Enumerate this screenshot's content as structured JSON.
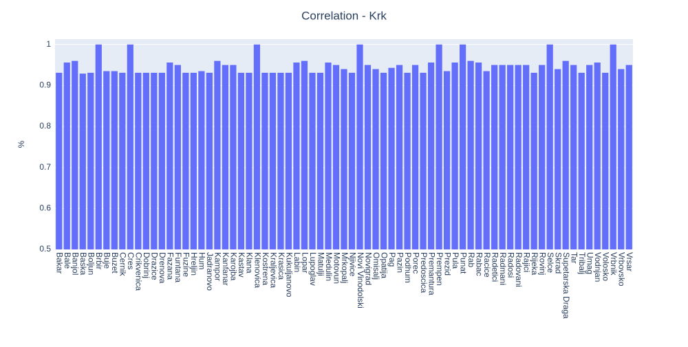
{
  "chart_data": {
    "type": "bar",
    "title": "Correlation - Krk",
    "y_label": "%",
    "color": "#636efa",
    "grid": true,
    "categories": [
      "Bakar",
      "Bale",
      "Banjol",
      "Baska",
      "Boljun",
      "Brbir",
      "Buje",
      "Buzet",
      "Cernik",
      "Cres",
      "Crikvenica",
      "Dobrinj",
      "Drazice",
      "Drenova",
      "Fazana",
      "Funtana",
      "Fuzine",
      "Hreljin",
      "Hum",
      "Jadranovo",
      "Kampor",
      "Kanfanar",
      "Karojba",
      "Kastav",
      "Klana",
      "Klenovica",
      "Kostrena",
      "Kraljevica",
      "Krasica",
      "Kukuljanovo",
      "Labin",
      "Lopar",
      "Lupoglav",
      "Matulji",
      "Medulin",
      "Motovun",
      "Mrkopalj",
      "Njivice",
      "Novi Vinodolski",
      "Novigrad",
      "Omisalj",
      "Opatija",
      "Pag",
      "Pazin",
      "Podhum",
      "Porec",
      "Predoscica",
      "Premantura",
      "Prempen",
      "Prezid",
      "Pula",
      "Punat",
      "Rab",
      "Rabac",
      "Racice",
      "Radetici",
      "Radmani",
      "Radosi",
      "Radovani",
      "Rajici",
      "Rijeka",
      "Rovinj",
      "Selce",
      "Skrad",
      "Supetarska Draga",
      "Tar",
      "Tribalj",
      "Umag",
      "Vodnjan",
      "Volosko",
      "Vrbnik",
      "Vrbovsko",
      "Vrsar"
    ],
    "values": [
      0.931,
      0.956,
      0.96,
      0.929,
      0.931,
      1.0,
      0.935,
      0.935,
      0.931,
      1.0,
      0.931,
      0.931,
      0.931,
      0.931,
      0.956,
      0.95,
      0.931,
      0.931,
      0.935,
      0.931,
      0.96,
      0.95,
      0.95,
      0.931,
      0.931,
      1.0,
      0.931,
      0.931,
      0.931,
      0.931,
      0.956,
      0.96,
      0.931,
      0.931,
      0.956,
      0.95,
      0.94,
      0.931,
      1.0,
      0.95,
      0.94,
      0.931,
      0.943,
      0.95,
      0.931,
      0.95,
      0.931,
      0.956,
      1.0,
      0.935,
      0.956,
      1.0,
      0.96,
      0.956,
      0.935,
      0.95,
      0.95,
      0.95,
      0.95,
      0.95,
      0.931,
      0.95,
      1.0,
      0.94,
      0.96,
      0.95,
      0.931,
      0.95,
      0.956,
      0.931,
      1.0,
      0.94,
      0.95
    ],
    "ylim": [
      0.5,
      1.013
    ],
    "yticks": [
      0.5,
      0.6,
      0.7,
      0.8,
      0.9,
      1
    ]
  }
}
